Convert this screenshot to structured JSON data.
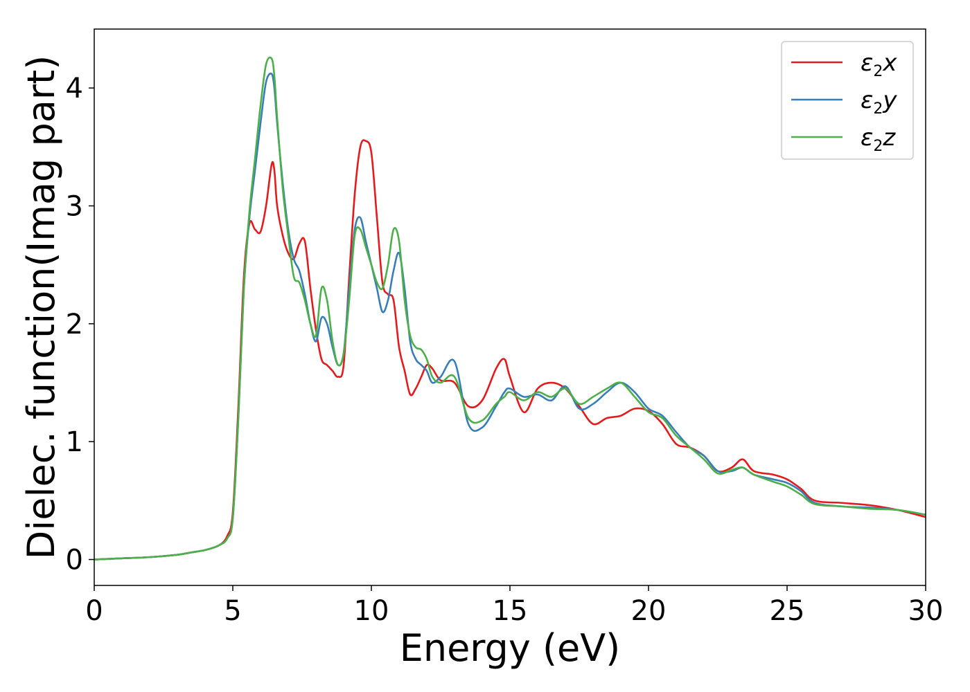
{
  "chart_data": {
    "type": "line",
    "title": "",
    "xlabel": "Energy (eV)",
    "ylabel": "Dielec. function(Imag part)",
    "xlim": [
      0,
      30
    ],
    "ylim": [
      -0.22,
      4.5
    ],
    "xticks": [
      0,
      5,
      10,
      15,
      20,
      25,
      30
    ],
    "yticks": [
      0,
      1,
      2,
      3,
      4
    ],
    "grid": false,
    "legend_position": "top-right",
    "series": [
      {
        "name": "ε2x",
        "legend_main": "ε",
        "legend_sub": "2",
        "legend_tail": "x",
        "color": "#e41a1c",
        "x": [
          0,
          1,
          2,
          3,
          3.5,
          4,
          4.5,
          4.8,
          5.0,
          5.2,
          5.4,
          5.6,
          5.8,
          6.0,
          6.2,
          6.4,
          6.5,
          6.6,
          6.8,
          7.0,
          7.2,
          7.4,
          7.6,
          7.8,
          8.0,
          8.2,
          8.4,
          8.6,
          8.8,
          9.0,
          9.2,
          9.4,
          9.6,
          9.8,
          10.0,
          10.2,
          10.4,
          10.6,
          10.8,
          11.0,
          11.2,
          11.4,
          11.6,
          11.8,
          12.0,
          12.2,
          12.5,
          13.0,
          13.5,
          14.0,
          14.5,
          14.8,
          15.0,
          15.5,
          16.0,
          16.5,
          17.0,
          17.5,
          18.0,
          18.5,
          19.0,
          19.5,
          20.0,
          20.5,
          21.0,
          21.5,
          22.0,
          22.5,
          23.0,
          23.4,
          23.8,
          24.5,
          25.0,
          25.5,
          26.0,
          27.0,
          28.0,
          29.0,
          30.0
        ],
        "values": [
          0,
          0.01,
          0.02,
          0.04,
          0.06,
          0.08,
          0.12,
          0.2,
          0.4,
          1.3,
          2.4,
          2.85,
          2.8,
          2.78,
          3.0,
          3.35,
          3.3,
          3.0,
          2.75,
          2.6,
          2.55,
          2.68,
          2.7,
          2.3,
          1.95,
          1.7,
          1.65,
          1.6,
          1.55,
          1.65,
          2.4,
          3.1,
          3.5,
          3.55,
          3.45,
          2.9,
          2.35,
          2.25,
          2.2,
          1.8,
          1.6,
          1.4,
          1.45,
          1.55,
          1.65,
          1.62,
          1.52,
          1.5,
          1.3,
          1.35,
          1.62,
          1.7,
          1.55,
          1.25,
          1.45,
          1.5,
          1.45,
          1.3,
          1.15,
          1.2,
          1.22,
          1.28,
          1.26,
          1.15,
          0.98,
          0.95,
          0.88,
          0.75,
          0.78,
          0.85,
          0.75,
          0.72,
          0.68,
          0.6,
          0.5,
          0.48,
          0.46,
          0.42,
          0.36
        ]
      },
      {
        "name": "ε2y",
        "legend_main": "ε",
        "legend_sub": "2",
        "legend_tail": "y",
        "color": "#377eb8",
        "x": [
          0,
          1,
          2,
          3,
          3.5,
          4,
          4.5,
          4.8,
          5.0,
          5.2,
          5.4,
          5.6,
          5.8,
          6.0,
          6.2,
          6.4,
          6.5,
          6.6,
          6.8,
          7.0,
          7.2,
          7.4,
          7.6,
          7.8,
          8.0,
          8.2,
          8.4,
          8.6,
          8.8,
          9.0,
          9.2,
          9.4,
          9.6,
          9.8,
          10.0,
          10.2,
          10.4,
          10.6,
          10.8,
          11.0,
          11.2,
          11.4,
          11.6,
          11.8,
          12.0,
          12.2,
          12.5,
          13.0,
          13.5,
          14.0,
          14.5,
          14.8,
          15.0,
          15.5,
          16.0,
          16.5,
          17.0,
          17.5,
          18.0,
          18.5,
          19.0,
          19.5,
          20.0,
          20.5,
          21.0,
          21.5,
          22.0,
          22.5,
          23.0,
          23.4,
          23.8,
          24.5,
          25.0,
          25.5,
          26.0,
          27.0,
          28.0,
          29.0,
          30.0
        ],
        "values": [
          0,
          0.01,
          0.02,
          0.04,
          0.06,
          0.08,
          0.12,
          0.18,
          0.35,
          1.2,
          2.3,
          2.9,
          3.3,
          3.7,
          4.05,
          4.12,
          4.0,
          3.7,
          3.2,
          2.8,
          2.55,
          2.45,
          2.25,
          2.0,
          1.85,
          2.05,
          2.0,
          1.8,
          1.65,
          1.75,
          2.3,
          2.8,
          2.9,
          2.7,
          2.5,
          2.3,
          2.1,
          2.2,
          2.45,
          2.6,
          2.3,
          1.85,
          1.7,
          1.65,
          1.6,
          1.5,
          1.55,
          1.68,
          1.15,
          1.12,
          1.3,
          1.42,
          1.45,
          1.38,
          1.4,
          1.35,
          1.47,
          1.28,
          1.32,
          1.42,
          1.5,
          1.42,
          1.28,
          1.22,
          1.08,
          0.95,
          0.88,
          0.75,
          0.75,
          0.78,
          0.72,
          0.68,
          0.65,
          0.58,
          0.48,
          0.45,
          0.44,
          0.42,
          0.38
        ]
      },
      {
        "name": "ε2z",
        "legend_main": "ε",
        "legend_sub": "2",
        "legend_tail": "z",
        "color": "#4daf4a",
        "x": [
          0,
          1,
          2,
          3,
          3.5,
          4,
          4.5,
          4.8,
          5.0,
          5.2,
          5.4,
          5.6,
          5.8,
          6.0,
          6.2,
          6.4,
          6.5,
          6.6,
          6.8,
          7.0,
          7.2,
          7.4,
          7.6,
          7.8,
          8.0,
          8.2,
          8.4,
          8.6,
          8.8,
          9.0,
          9.2,
          9.4,
          9.6,
          9.8,
          10.0,
          10.2,
          10.4,
          10.6,
          10.8,
          11.0,
          11.2,
          11.4,
          11.6,
          11.8,
          12.0,
          12.2,
          12.5,
          13.0,
          13.5,
          14.0,
          14.5,
          14.8,
          15.0,
          15.5,
          16.0,
          16.5,
          17.0,
          17.5,
          18.0,
          18.5,
          19.0,
          19.5,
          20.0,
          20.5,
          21.0,
          21.5,
          22.0,
          22.5,
          23.0,
          23.4,
          23.8,
          24.5,
          25.0,
          25.5,
          26.0,
          27.0,
          28.0,
          29.0,
          30.0
        ],
        "values": [
          0,
          0.01,
          0.02,
          0.04,
          0.06,
          0.08,
          0.12,
          0.18,
          0.35,
          1.2,
          2.3,
          2.95,
          3.4,
          3.85,
          4.2,
          4.25,
          4.1,
          3.75,
          3.15,
          2.75,
          2.4,
          2.35,
          2.2,
          2.0,
          1.9,
          2.3,
          2.2,
          1.85,
          1.65,
          1.75,
          2.2,
          2.75,
          2.8,
          2.65,
          2.5,
          2.35,
          2.3,
          2.5,
          2.8,
          2.7,
          2.2,
          1.9,
          1.8,
          1.78,
          1.7,
          1.55,
          1.5,
          1.55,
          1.2,
          1.18,
          1.32,
          1.38,
          1.42,
          1.35,
          1.42,
          1.38,
          1.45,
          1.32,
          1.38,
          1.45,
          1.5,
          1.38,
          1.25,
          1.2,
          1.05,
          0.95,
          0.85,
          0.73,
          0.76,
          0.78,
          0.72,
          0.66,
          0.62,
          0.55,
          0.47,
          0.45,
          0.43,
          0.42,
          0.38
        ]
      }
    ]
  }
}
